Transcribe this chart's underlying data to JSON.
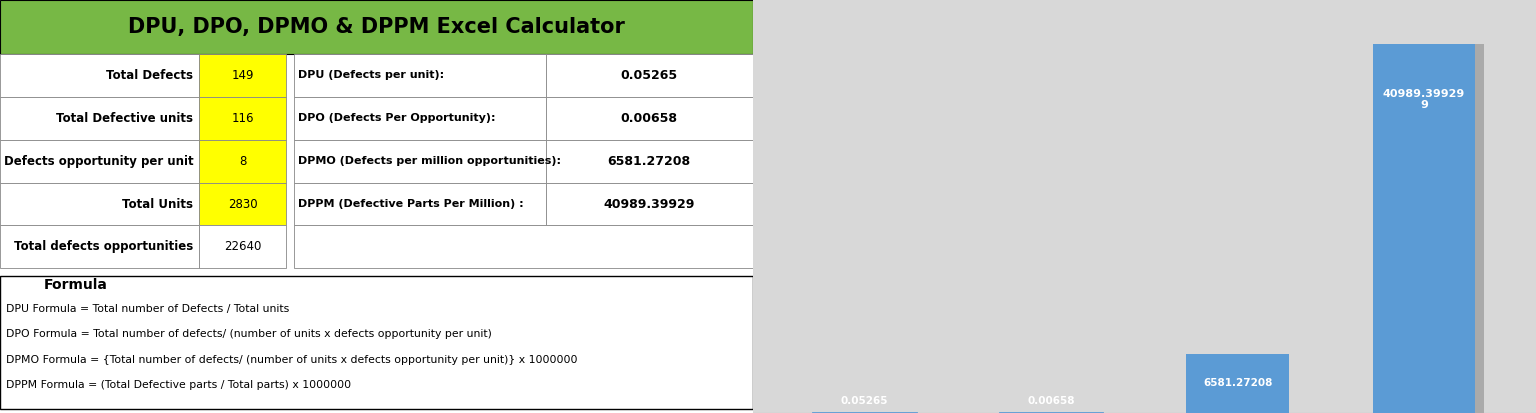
{
  "title": "DPU, DPO, DPMO & DPPM Excel Calculator",
  "header_bg": "#77b845",
  "title_color": "#000000",
  "left_table": {
    "rows": [
      {
        "label": "Total Defects",
        "value": "149",
        "value_bg": "#ffff00"
      },
      {
        "label": "Total Defective units",
        "value": "116",
        "value_bg": "#ffff00"
      },
      {
        "label": "Defects opportunity per unit",
        "value": "8",
        "value_bg": "#ffff00"
      },
      {
        "label": "Total Units",
        "value": "2830",
        "value_bg": "#ffff00"
      },
      {
        "label": "Total defects opportunities",
        "value": "22640",
        "value_bg": "#ffffff"
      }
    ]
  },
  "right_table": {
    "rows": [
      {
        "label": "DPU (Defects per unit):",
        "value": "0.05265"
      },
      {
        "label": "DPO (Defects Per Opportunity):",
        "value": "0.00658"
      },
      {
        "label": "DPMO (Defects per million opportunities):",
        "value": "6581.27208"
      },
      {
        "label": "DPPM (Defective Parts Per Million) :",
        "value": "40989.39929"
      }
    ]
  },
  "formula_box": {
    "title": "Formula",
    "lines": [
      "DPU Formula = Total number of Defects / Total units",
      "DPO Formula = Total number of defects/ (number of units x defects opportunity per unit)",
      "DPMO Formula = {Total number of defects/ (number of units x defects opportunity per unit)} x 1000000",
      "DPPM Formula = (Total Defective parts / Total parts) x 1000000"
    ]
  },
  "bar_chart": {
    "categories": [
      "DPU (Defects per\nunit):",
      "DPO (Defects Per\nOpportunity):",
      "DPMO (Defects\nper million\nopportunities):",
      "DPPM (Defective\nParts Per Million)\n:"
    ],
    "values": [
      0.05265,
      0.00658,
      6581.27208,
      40989.39929
    ],
    "bar_color": "#5b9bd5",
    "inside_labels": [
      "0.05265",
      "0.00658",
      "6581.27208",
      "40989.39929\n9"
    ]
  },
  "bg_color": "#ffffff",
  "chart_bg": "#d8d8d8"
}
